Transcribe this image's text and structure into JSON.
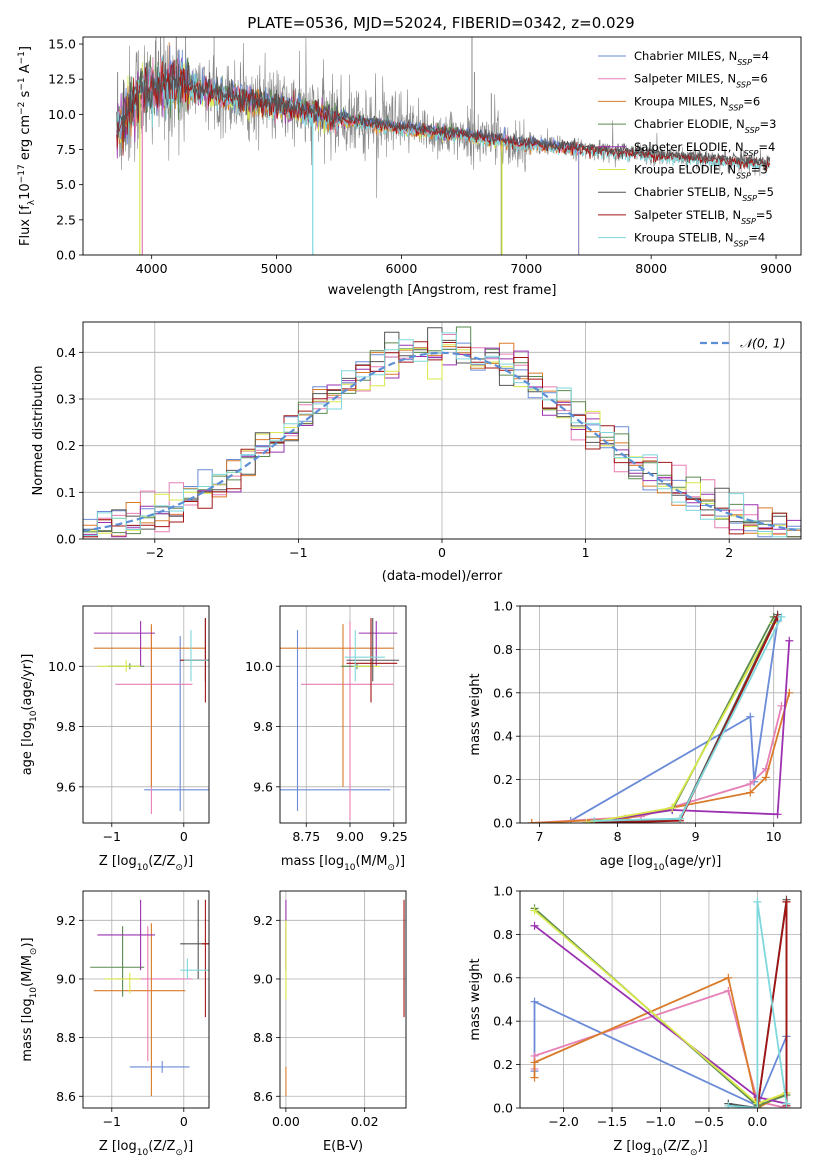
{
  "figure_title": "PLATE=0536, MJD=52024, FIBERID=0342, z=0.029",
  "colors": {
    "Chabrier MILES": "#6a8bd8",
    "Salpeter MILES": "#e67fb5",
    "Kroupa MILES": "#d97b2a",
    "Chabrier ELODIE": "#5a8a4e",
    "Salpeter ELODIE": "#9b30b0",
    "Kroupa ELODIE": "#d8e84a",
    "Chabrier STELIB": "#555555",
    "Salpeter STELIB": "#a31515",
    "Kroupa STELIB": "#7ed8dc",
    "data": "#888888",
    "normal": "#5b8fd6",
    "grid": "#b0b0b0"
  },
  "chart_data": [
    {
      "id": "spectrum",
      "type": "line",
      "xlabel": "wavelength [Angstrom, rest frame]",
      "ylabel": "Flux [f",
      "ylabel_sub": "λ",
      "ylabel_rest": "10",
      "ylabel_exp": "−17",
      "ylabel_tail": " erg cm",
      "ylabel_exp2": "−2",
      "ylabel_tail2": " s",
      "ylabel_exp3": "−1",
      "ylabel_tail3": " A",
      "ylabel_exp4": "−1",
      "ylabel_end": "]",
      "xlim": [
        3450,
        9200
      ],
      "ylim": [
        0,
        15.5
      ],
      "xticks": [
        4000,
        5000,
        6000,
        7000,
        8000,
        9000
      ],
      "yticks": [
        0.0,
        2.5,
        5.0,
        7.5,
        10.0,
        12.5,
        15.0
      ],
      "grid": false,
      "legend_position": "top-right",
      "legend": [
        {
          "name": "Chabrier MILES",
          "n": "4"
        },
        {
          "name": "Salpeter MILES",
          "n": "6"
        },
        {
          "name": "Kroupa MILES",
          "n": "6"
        },
        {
          "name": "Chabrier ELODIE",
          "n": "3"
        },
        {
          "name": "Salpeter ELODIE",
          "n": "4"
        },
        {
          "name": "Kroupa ELODIE",
          "n": "3"
        },
        {
          "name": "Chabrier STELIB",
          "n": "5"
        },
        {
          "name": "Salpeter STELIB",
          "n": "5"
        },
        {
          "name": "Kroupa STELIB",
          "n": "4"
        }
      ],
      "legend_suffix": "SSP",
      "data_trend": {
        "x": [
          3720,
          3900,
          4200,
          4600,
          5000,
          5500,
          6000,
          6500,
          7000,
          7500,
          8000,
          8500,
          8900
        ],
        "y": [
          9.0,
          11.5,
          12.2,
          11.3,
          10.6,
          9.7,
          9.0,
          8.5,
          7.9,
          7.5,
          7.1,
          6.8,
          6.5
        ]
      },
      "model_ends": {
        "Kroupa ELODIE": 6800,
        "Salpeter ELODIE": 6800,
        "Chabrier ELODIE": 6800,
        "Kroupa MILES": 7420,
        "Salpeter MILES": 7420,
        "Chabrier MILES": 7420,
        "Kroupa STELIB": 9000,
        "Salpeter STELIB": 9000,
        "Chabrier STELIB": 9000
      }
    },
    {
      "id": "residuals",
      "type": "line",
      "xlabel": "(data-model)/error",
      "ylabel": "Normed distribution",
      "xlim": [
        -2.5,
        2.5
      ],
      "ylim": [
        0,
        0.465
      ],
      "xticks": [
        -2,
        -1,
        0,
        1,
        2
      ],
      "yticks": [
        0.0,
        0.1,
        0.2,
        0.3,
        0.4
      ],
      "grid": true,
      "legend_position": "top-right",
      "legend_label": "𝒩(0, 1)",
      "bin_width": 0.1
    },
    {
      "id": "age_vs_Z",
      "type": "scatter",
      "xlabel": "Z [log",
      "xlabel_sub": "10",
      "xlabel_rest": "(Z/Z",
      "xlabel_sub2": "⊙",
      "xlabel_end": ")]",
      "ylabel": "age  [log",
      "ylabel_sub": "10",
      "ylabel_rest": "(age/yr)]",
      "xlim": [
        -1.4,
        0.35
      ],
      "ylim": [
        9.48,
        10.2
      ],
      "xticks": [
        -1,
        0
      ],
      "yticks": [
        9.6,
        9.8,
        10.0
      ],
      "grid": true,
      "points": [
        {
          "name": "Chabrier MILES",
          "x": -0.05,
          "xlo": -0.55,
          "xhi": 0.35,
          "y": 9.59,
          "ylo": 9.52,
          "yhi": 10.1
        },
        {
          "name": "Salpeter MILES",
          "x": -0.45,
          "xlo": -0.95,
          "xhi": 0.12,
          "y": 9.94,
          "ylo": 9.51,
          "yhi": 10.13
        },
        {
          "name": "Kroupa MILES",
          "x": -0.45,
          "xlo": -1.25,
          "xhi": 0.3,
          "y": 10.06,
          "ylo": 9.6,
          "yhi": 10.14
        },
        {
          "name": "Chabrier ELODIE",
          "x": -0.75,
          "xlo": -1.05,
          "xhi": -0.55,
          "y": 10.0,
          "ylo": 9.99,
          "yhi": 10.01
        },
        {
          "name": "Salpeter ELODIE",
          "x": -0.6,
          "xlo": -1.25,
          "xhi": -0.4,
          "y": 10.11,
          "ylo": 10.0,
          "yhi": 10.15
        },
        {
          "name": "Kroupa ELODIE",
          "x": -0.8,
          "xlo": -1.2,
          "xhi": -0.6,
          "y": 10.0,
          "ylo": 9.98,
          "yhi": 10.02
        },
        {
          "name": "Chabrier STELIB",
          "x": 0.3,
          "xlo": -0.05,
          "xhi": 0.35,
          "y": 10.02,
          "ylo": 9.95,
          "yhi": 10.16
        },
        {
          "name": "Salpeter STELIB",
          "x": 0.3,
          "xlo": -0.05,
          "xhi": 0.35,
          "y": 10.02,
          "ylo": 9.88,
          "yhi": 10.16
        },
        {
          "name": "Kroupa STELIB",
          "x": 0.1,
          "xlo": 0.0,
          "xhi": 0.35,
          "y": 10.02,
          "ylo": 9.95,
          "yhi": 10.12
        }
      ]
    },
    {
      "id": "age_vs_mass",
      "type": "scatter",
      "xlabel": "mass [log",
      "xlabel_sub": "10",
      "xlabel_rest": "(M/M",
      "xlabel_sub2": "⊙",
      "xlabel_end": ")]",
      "xlim": [
        8.6,
        9.32
      ],
      "ylim": [
        9.48,
        10.2
      ],
      "xticks": [
        8.75,
        9.0,
        9.25
      ],
      "yticks": [
        9.6,
        9.8,
        10.0
      ],
      "grid": true,
      "points": [
        {
          "name": "Chabrier MILES",
          "x": 8.7,
          "xlo": 8.6,
          "xhi": 9.23,
          "y": 9.59,
          "ylo": 9.52,
          "yhi": 10.12
        },
        {
          "name": "Salpeter MILES",
          "x": 9.0,
          "xlo": 8.72,
          "xhi": 9.25,
          "y": 9.94,
          "ylo": 9.49,
          "yhi": 10.15
        },
        {
          "name": "Kroupa MILES",
          "x": 8.96,
          "xlo": 8.6,
          "xhi": 9.25,
          "y": 10.06,
          "ylo": 9.6,
          "yhi": 10.14
        },
        {
          "name": "Chabrier ELODIE",
          "x": 9.04,
          "xlo": 8.95,
          "xhi": 9.13,
          "y": 10.0,
          "ylo": 9.99,
          "yhi": 10.01
        },
        {
          "name": "Salpeter ELODIE",
          "x": 9.15,
          "xlo": 9.05,
          "xhi": 9.27,
          "y": 10.11,
          "ylo": 10.0,
          "yhi": 10.15
        },
        {
          "name": "Kroupa ELODIE",
          "x": 9.12,
          "xlo": 9.02,
          "xhi": 9.17,
          "y": 10.0,
          "ylo": 9.98,
          "yhi": 10.02
        },
        {
          "name": "Chabrier STELIB",
          "x": 9.13,
          "xlo": 8.98,
          "xhi": 9.28,
          "y": 10.02,
          "ylo": 9.95,
          "yhi": 10.16
        },
        {
          "name": "Salpeter STELIB",
          "x": 9.12,
          "xlo": 8.98,
          "xhi": 9.27,
          "y": 10.01,
          "ylo": 9.88,
          "yhi": 10.16
        },
        {
          "name": "Kroupa STELIB",
          "x": 9.03,
          "xlo": 8.97,
          "xhi": 9.2,
          "y": 10.03,
          "ylo": 9.95,
          "yhi": 10.12
        }
      ]
    },
    {
      "id": "massweight_vs_age",
      "type": "line",
      "xlabel": "age  [log",
      "xlabel_sub": "10",
      "xlabel_rest": "(age/yr)]",
      "ylabel": "mass weight",
      "xlim": [
        6.75,
        10.35
      ],
      "ylim": [
        0,
        1.0
      ],
      "xticks": [
        7,
        8,
        9,
        10
      ],
      "yticks": [
        0.0,
        0.2,
        0.4,
        0.6,
        0.8,
        1.0
      ],
      "grid": true,
      "series": [
        {
          "name": "Chabrier MILES",
          "x": [
            7.4,
            9.7,
            9.75,
            10.05
          ],
          "y": [
            0.01,
            0.49,
            0.19,
            0.93
          ]
        },
        {
          "name": "Salpeter MILES",
          "x": [
            6.9,
            8.3,
            9.7,
            9.9,
            10.1
          ],
          "y": [
            0.0,
            0.03,
            0.18,
            0.25,
            0.54
          ]
        },
        {
          "name": "Kroupa MILES",
          "x": [
            6.9,
            8.1,
            8.7,
            9.7,
            9.9,
            10.2
          ],
          "y": [
            0.0,
            0.02,
            0.07,
            0.14,
            0.21,
            0.6
          ]
        },
        {
          "name": "Chabrier ELODIE",
          "x": [
            7.6,
            8.7,
            10.0
          ],
          "y": [
            0.0,
            0.06,
            0.95
          ]
        },
        {
          "name": "Salpeter ELODIE",
          "x": [
            7.6,
            8.7,
            10.05,
            10.2
          ],
          "y": [
            0.0,
            0.06,
            0.04,
            0.84
          ]
        },
        {
          "name": "Kroupa ELODIE",
          "x": [
            7.6,
            8.7,
            10.0
          ],
          "y": [
            0.0,
            0.07,
            0.92
          ]
        },
        {
          "name": "Chabrier STELIB",
          "x": [
            7.7,
            8.8,
            10.05
          ],
          "y": [
            0.0,
            0.02,
            0.96
          ]
        },
        {
          "name": "Salpeter STELIB",
          "x": [
            7.7,
            8.8,
            10.05
          ],
          "y": [
            0.0,
            0.01,
            0.95
          ]
        },
        {
          "name": "Kroupa STELIB",
          "x": [
            7.7,
            8.8,
            10.1
          ],
          "y": [
            0.01,
            0.02,
            0.95
          ]
        }
      ]
    },
    {
      "id": "mass_vs_Z",
      "type": "scatter",
      "xlabel": "Z [log",
      "xlabel_sub": "10",
      "xlabel_rest": "(Z/Z",
      "xlabel_sub2": "⊙",
      "xlabel_end": ")]",
      "ylabel": "mass [log",
      "ylabel_sub": "10",
      "ylabel_rest": "(M/M",
      "ylabel_sub2": "⊙",
      "ylabel_end": ")]",
      "xlim": [
        -1.4,
        0.35
      ],
      "ylim": [
        8.56,
        9.3
      ],
      "xticks": [
        -1,
        0
      ],
      "yticks": [
        8.6,
        8.8,
        9.0,
        9.2
      ],
      "grid": true,
      "points": [
        {
          "name": "Chabrier MILES",
          "x": -0.3,
          "xlo": -0.75,
          "xhi": 0.08,
          "y": 8.7,
          "ylo": 8.68,
          "yhi": 8.72
        },
        {
          "name": "Salpeter MILES",
          "x": -0.5,
          "xlo": -0.95,
          "xhi": 0.12,
          "y": 9.0,
          "ylo": 8.72,
          "yhi": 9.18
        },
        {
          "name": "Kroupa MILES",
          "x": -0.45,
          "xlo": -1.25,
          "xhi": 0.02,
          "y": 8.96,
          "ylo": 8.6,
          "yhi": 9.19
        },
        {
          "name": "Chabrier ELODIE",
          "x": -0.85,
          "xlo": -1.3,
          "xhi": -0.55,
          "y": 9.04,
          "ylo": 8.94,
          "yhi": 9.18
        },
        {
          "name": "Salpeter ELODIE",
          "x": -0.6,
          "xlo": -1.2,
          "xhi": -0.4,
          "y": 9.15,
          "ylo": 9.03,
          "yhi": 9.27
        },
        {
          "name": "Kroupa ELODIE",
          "x": -0.75,
          "xlo": -1.1,
          "xhi": -0.6,
          "y": 9.0,
          "ylo": 8.95,
          "yhi": 9.02
        },
        {
          "name": "Chabrier STELIB",
          "x": 0.2,
          "xlo": -0.05,
          "xhi": 0.35,
          "y": 9.12,
          "ylo": 9.0,
          "yhi": 9.27
        },
        {
          "name": "Salpeter STELIB",
          "x": 0.3,
          "xlo": 0.25,
          "xhi": 0.35,
          "y": 9.12,
          "ylo": 8.87,
          "yhi": 9.27
        },
        {
          "name": "Kroupa STELIB",
          "x": 0.05,
          "xlo": -0.05,
          "xhi": 0.35,
          "y": 9.03,
          "ylo": 9.0,
          "yhi": 9.07
        }
      ]
    },
    {
      "id": "mass_vs_ebv",
      "type": "scatter",
      "xlabel": "E(B-V)",
      "xlim": [
        -0.0015,
        0.0305
      ],
      "ylim": [
        8.56,
        9.3
      ],
      "xticks": [
        0.0,
        0.02
      ],
      "yticks": [
        8.6,
        8.8,
        9.0,
        9.2
      ],
      "grid": true,
      "points": [
        {
          "name": "Kroupa MILES",
          "x": 0.0,
          "y": 8.6,
          "ylo": 8.6,
          "yhi": 8.7
        },
        {
          "name": "Salpeter ELODIE",
          "x": 0.0,
          "y": 9.15,
          "ylo": 9.03,
          "yhi": 9.27
        },
        {
          "name": "Kroupa ELODIE",
          "x": 0.0,
          "y": 9.0,
          "ylo": 8.93,
          "yhi": 9.2
        },
        {
          "name": "Kroupa STELIB",
          "x": 0.03,
          "y": 9.02,
          "ylo": 8.92,
          "yhi": 9.21
        },
        {
          "name": "Salpeter STELIB",
          "x": 0.03,
          "y": 9.12,
          "ylo": 8.87,
          "yhi": 9.27
        }
      ]
    },
    {
      "id": "massweight_vs_Z",
      "type": "line",
      "xlabel": "Z [log",
      "xlabel_sub": "10",
      "xlabel_rest": "(Z/Z",
      "xlabel_sub2": "⊙",
      "xlabel_end": ")]",
      "ylabel": "mass weight",
      "xlim": [
        -2.45,
        0.45
      ],
      "ylim": [
        0,
        1.0
      ],
      "xticks": [
        -2.0,
        -1.5,
        -1.0,
        -0.5,
        0.0
      ],
      "yticks": [
        0.0,
        0.2,
        0.4,
        0.6,
        0.8,
        1.0
      ],
      "grid": true,
      "series": [
        {
          "name": "Chabrier MILES",
          "x": [
            -2.3,
            -2.3,
            0.0,
            0.3,
            0.3
          ],
          "y": [
            0.17,
            0.49,
            0.01,
            0.33,
            0.0
          ]
        },
        {
          "name": "Salpeter MILES",
          "x": [
            -2.3,
            -2.3,
            -0.3,
            0.0,
            0.3
          ],
          "y": [
            0.18,
            0.24,
            0.54,
            0.03,
            0.0
          ]
        },
        {
          "name": "Kroupa MILES",
          "x": [
            -2.3,
            -2.3,
            -0.3,
            0.0,
            0.3
          ],
          "y": [
            0.14,
            0.21,
            0.6,
            0.0,
            0.07
          ]
        },
        {
          "name": "Chabrier ELODIE",
          "x": [
            -2.3,
            0.0,
            0.3
          ],
          "y": [
            0.92,
            0.01,
            0.06
          ]
        },
        {
          "name": "Salpeter ELODIE",
          "x": [
            -2.3,
            0.0,
            0.3
          ],
          "y": [
            0.84,
            0.05,
            0.02
          ]
        },
        {
          "name": "Kroupa ELODIE",
          "x": [
            -2.3,
            0.0,
            0.3
          ],
          "y": [
            0.91,
            0.02,
            0.07
          ]
        },
        {
          "name": "Chabrier STELIB",
          "x": [
            -0.3,
            0.0,
            0.3,
            0.3
          ],
          "y": [
            0.02,
            0.0,
            0.96,
            0.02
          ]
        },
        {
          "name": "Salpeter STELIB",
          "x": [
            0.0,
            0.3,
            0.3
          ],
          "y": [
            0.0,
            0.95,
            0.01
          ]
        },
        {
          "name": "Kroupa STELIB",
          "x": [
            -0.3,
            0.0,
            0.0,
            0.3
          ],
          "y": [
            0.01,
            0.0,
            0.95,
            0.02
          ]
        }
      ]
    }
  ]
}
